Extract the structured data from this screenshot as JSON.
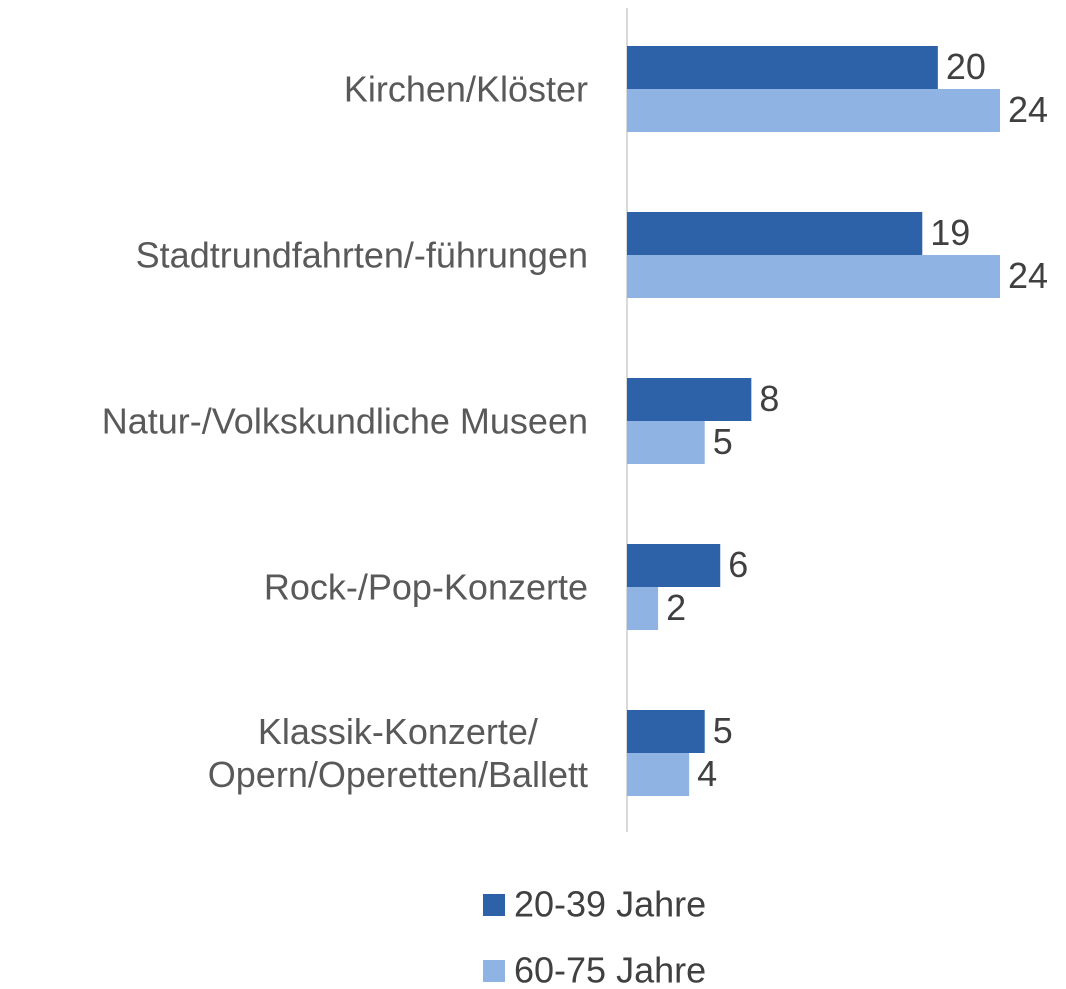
{
  "chart_data": {
    "type": "barh",
    "categories": [
      "Kirchen/Klöster",
      "Stadtrundfahrten/-führungen",
      "Natur-/Volkskundliche Museen",
      "Rock-/Pop-Konzerte",
      "Klassik-Konzerte/\nOpern/Operetten/Ballett"
    ],
    "series": [
      {
        "name": "20-39 Jahre",
        "color": "#2e62a8",
        "values": [
          20,
          19,
          8,
          6,
          5
        ]
      },
      {
        "name": "60-75 Jahre",
        "color": "#8fb4e3",
        "values": [
          24,
          24,
          5,
          2,
          4
        ]
      }
    ],
    "legend": "bottom"
  }
}
